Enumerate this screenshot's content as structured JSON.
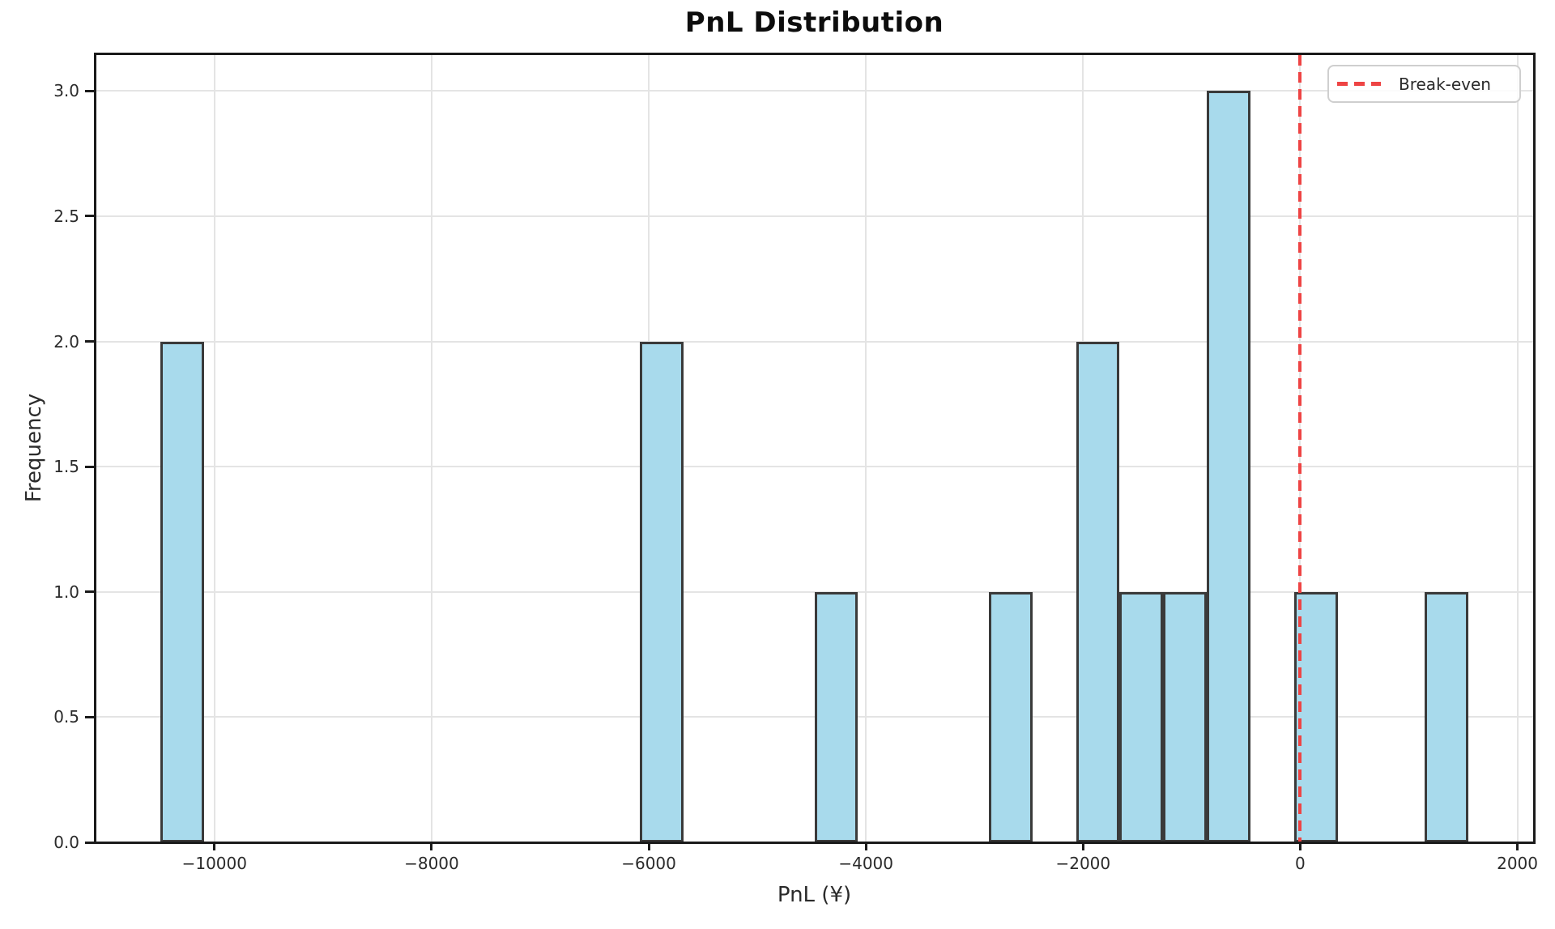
{
  "chart_data": {
    "type": "histogram",
    "title": "PnL Distribution",
    "xlabel": "PnL (¥)",
    "ylabel": "Frequency",
    "xlim": [
      -11102.5,
      2152.5
    ],
    "ylim": [
      0,
      3.15
    ],
    "grid": true,
    "bin_width": 401.67,
    "total_count": 15,
    "bins": [
      {
        "x0": -10500.0,
        "x1": -10098.33,
        "count": 2
      },
      {
        "x0": -6081.67,
        "x1": -5680.0,
        "count": 2
      },
      {
        "x0": -4475.0,
        "x1": -4073.33,
        "count": 1
      },
      {
        "x0": -2868.33,
        "x1": -2466.67,
        "count": 1
      },
      {
        "x0": -2065.0,
        "x1": -1663.33,
        "count": 2
      },
      {
        "x0": -1663.33,
        "x1": -1261.67,
        "count": 1
      },
      {
        "x0": -1261.67,
        "x1": -860.0,
        "count": 1
      },
      {
        "x0": -860.0,
        "x1": -458.33,
        "count": 3
      },
      {
        "x0": -56.67,
        "x1": 345.0,
        "count": 1
      },
      {
        "x0": 1148.33,
        "x1": 1550.0,
        "count": 1
      }
    ],
    "xticks": [
      {
        "v": -10000,
        "label": "−10000"
      },
      {
        "v": -8000,
        "label": "−8000"
      },
      {
        "v": -6000,
        "label": "−6000"
      },
      {
        "v": -4000,
        "label": "−4000"
      },
      {
        "v": -2000,
        "label": "−2000"
      },
      {
        "v": 0,
        "label": "0"
      },
      {
        "v": 2000,
        "label": "2000"
      }
    ],
    "yticks": [
      {
        "v": 0.0,
        "label": "0.0"
      },
      {
        "v": 0.5,
        "label": "0.5"
      },
      {
        "v": 1.0,
        "label": "1.0"
      },
      {
        "v": 1.5,
        "label": "1.5"
      },
      {
        "v": 2.0,
        "label": "2.0"
      },
      {
        "v": 2.5,
        "label": "2.5"
      },
      {
        "v": 3.0,
        "label": "3.0"
      }
    ],
    "break_even_line": {
      "x": 0,
      "label": "Break-even",
      "style": "dashed"
    },
    "legend": {
      "position": "upper right",
      "entries": [
        {
          "label": "Break-even",
          "dashed": true
        }
      ]
    }
  },
  "colors": {
    "bar_fill": "#a8daec",
    "bar_edge": "#3a3a3a",
    "grid": "#e4e4e4",
    "break_even": "#ee4444",
    "spine": "#1a1a1a",
    "text": "#2b2b2b"
  }
}
